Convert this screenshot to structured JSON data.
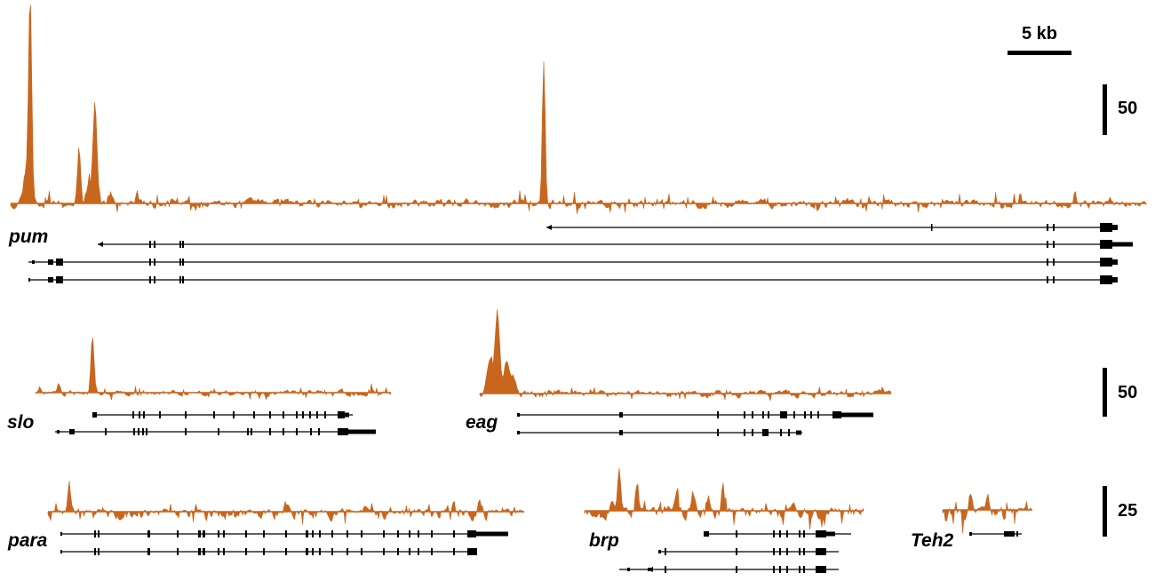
{
  "scale_bar": {
    "label": "5 kb"
  },
  "tracks": [
    {
      "id": "pum",
      "gene": "pum",
      "scale": "50"
    },
    {
      "id": "slo",
      "gene": "slo",
      "scale": "50"
    },
    {
      "id": "eag",
      "gene": "eag",
      "scale": ""
    },
    {
      "id": "para",
      "gene": "para",
      "scale": "25"
    },
    {
      "id": "brp",
      "gene": "brp",
      "scale": ""
    },
    {
      "id": "Teh2",
      "gene": "Teh2",
      "scale": ""
    }
  ],
  "colors": {
    "signal": "#C8661E",
    "gene": "#000000"
  }
}
